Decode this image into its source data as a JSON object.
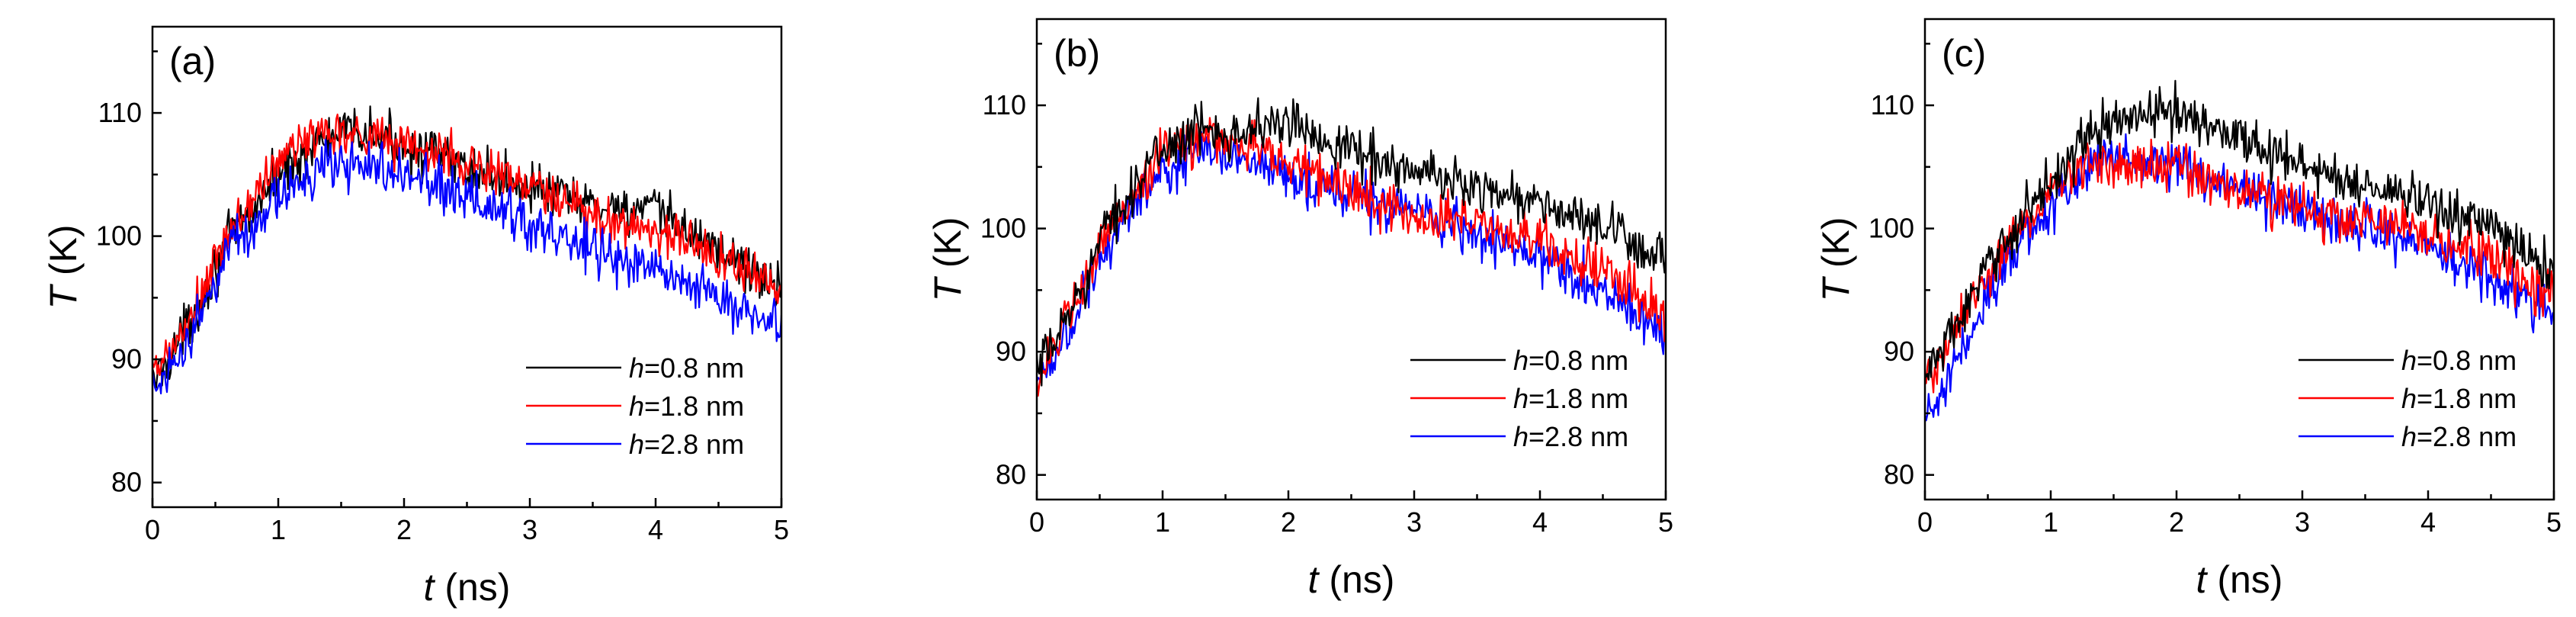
{
  "figure": {
    "panels": [
      {
        "label": "(a)",
        "series_order": [
          0,
          1,
          2
        ]
      },
      {
        "label": "(b)",
        "series_order": [
          2,
          1,
          0
        ]
      },
      {
        "label": "(c)",
        "series_order": [
          2,
          1,
          0
        ]
      }
    ]
  },
  "chart_data": [
    {
      "type": "line",
      "panel": "(a)",
      "xlabel_var": "t",
      "xlabel_unit": " (ns)",
      "ylabel_var": "T",
      "ylabel_unit": " (K)",
      "xlim": [
        0,
        5
      ],
      "ylim": [
        78,
        117
      ],
      "xticks": [
        0,
        1,
        2,
        3,
        4,
        5
      ],
      "yticks": [
        80,
        90,
        100,
        110
      ],
      "legend_position": "bottom-right",
      "series": [
        {
          "name_var": "h",
          "name_rest": "=0.8 nm",
          "color": "#000000",
          "noise": 1.0,
          "keypoints": [
            [
              0,
              88
            ],
            [
              0.3,
              93
            ],
            [
              0.6,
              99.5
            ],
            [
              1.0,
              105
            ],
            [
              1.3,
              107.5
            ],
            [
              1.6,
              108.5
            ],
            [
              2.0,
              107.5
            ],
            [
              2.5,
              105.5
            ],
            [
              3.0,
              104
            ],
            [
              3.5,
              102.5
            ],
            [
              4.0,
              102
            ],
            [
              4.5,
              99
            ],
            [
              5.0,
              95.5
            ]
          ]
        },
        {
          "name_var": "h",
          "name_rest": "=1.8 nm",
          "color": "#ff0000",
          "noise": 1.0,
          "keypoints": [
            [
              0,
              88.5
            ],
            [
              0.3,
              93
            ],
            [
              0.6,
              100
            ],
            [
              1.0,
              106
            ],
            [
              1.3,
              108.5
            ],
            [
              1.6,
              108.5
            ],
            [
              2.0,
              107.5
            ],
            [
              2.5,
              106
            ],
            [
              3.0,
              104
            ],
            [
              3.5,
              101.5
            ],
            [
              4.0,
              100.5
            ],
            [
              4.5,
              98.5
            ],
            [
              5.0,
              95.5
            ]
          ]
        },
        {
          "name_var": "h",
          "name_rest": "=2.8 nm",
          "color": "#0000ff",
          "noise": 1.0,
          "keypoints": [
            [
              0,
              87.5
            ],
            [
              0.3,
              92
            ],
            [
              0.6,
              98.5
            ],
            [
              1.0,
              103
            ],
            [
              1.3,
              105.5
            ],
            [
              1.6,
              106
            ],
            [
              2.0,
              105
            ],
            [
              2.5,
              103
            ],
            [
              3.0,
              101
            ],
            [
              3.5,
              99
            ],
            [
              4.0,
              97
            ],
            [
              4.5,
              95
            ],
            [
              5.0,
              92.5
            ]
          ]
        }
      ]
    },
    {
      "type": "line",
      "panel": "(b)",
      "xlabel_var": "t",
      "xlabel_unit": " (ns)",
      "ylabel_var": "T",
      "ylabel_unit": " (K)",
      "xlim": [
        0,
        5
      ],
      "ylim": [
        78,
        117
      ],
      "xticks": [
        0,
        1,
        2,
        3,
        4,
        5
      ],
      "yticks": [
        80,
        90,
        100,
        110
      ],
      "legend_position": "bottom-right",
      "series": [
        {
          "name_var": "h",
          "name_rest": "=0.8 nm",
          "color": "#000000",
          "noise": 1.0,
          "keypoints": [
            [
              0,
              88
            ],
            [
              0.3,
              94
            ],
            [
              0.6,
              101
            ],
            [
              1.0,
              106.5
            ],
            [
              1.3,
              108
            ],
            [
              1.6,
              108
            ],
            [
              2.0,
              108.5
            ],
            [
              2.5,
              106.5
            ],
            [
              3.0,
              104.5
            ],
            [
              3.5,
              103.5
            ],
            [
              4.0,
              102
            ],
            [
              4.5,
              100
            ],
            [
              5.0,
              97.5
            ]
          ]
        },
        {
          "name_var": "h",
          "name_rest": "=1.8 nm",
          "color": "#ff0000",
          "noise": 1.0,
          "keypoints": [
            [
              0,
              88
            ],
            [
              0.3,
              93.5
            ],
            [
              0.6,
              100.5
            ],
            [
              1.0,
              106
            ],
            [
              1.3,
              107.5
            ],
            [
              1.6,
              107
            ],
            [
              2.0,
              105.5
            ],
            [
              2.5,
              103
            ],
            [
              3.0,
              101
            ],
            [
              3.5,
              100.5
            ],
            [
              4.0,
              99
            ],
            [
              4.5,
              96.5
            ],
            [
              5.0,
              93
            ]
          ]
        },
        {
          "name_var": "h",
          "name_rest": "=2.8 nm",
          "color": "#0000ff",
          "noise": 1.0,
          "keypoints": [
            [
              0,
              87.5
            ],
            [
              0.3,
              93
            ],
            [
              0.6,
              99.5
            ],
            [
              1.0,
              104.5
            ],
            [
              1.3,
              106
            ],
            [
              1.6,
              106
            ],
            [
              2.0,
              104.5
            ],
            [
              2.5,
              102.5
            ],
            [
              3.0,
              101
            ],
            [
              3.5,
              99.5
            ],
            [
              4.0,
              97.5
            ],
            [
              4.5,
              95
            ],
            [
              5.0,
              91.5
            ]
          ]
        }
      ]
    },
    {
      "type": "line",
      "panel": "(c)",
      "xlabel_var": "t",
      "xlabel_unit": " (ns)",
      "ylabel_var": "T",
      "ylabel_unit": " (K)",
      "xlim": [
        0,
        5
      ],
      "ylim": [
        78,
        117
      ],
      "xticks": [
        0,
        1,
        2,
        3,
        4,
        5
      ],
      "yticks": [
        80,
        90,
        100,
        110
      ],
      "legend_position": "bottom-right",
      "series": [
        {
          "name_var": "h",
          "name_rest": "=0.8 nm",
          "color": "#000000",
          "noise": 1.0,
          "keypoints": [
            [
              0,
              88
            ],
            [
              0.3,
              93
            ],
            [
              0.6,
              98.5
            ],
            [
              1.0,
              104
            ],
            [
              1.3,
              107.5
            ],
            [
              1.6,
              109
            ],
            [
              2.0,
              109.5
            ],
            [
              2.5,
              107.5
            ],
            [
              3.0,
              105
            ],
            [
              3.5,
              103.5
            ],
            [
              4.0,
              102
            ],
            [
              4.5,
              100
            ],
            [
              5.0,
              96.5
            ]
          ]
        },
        {
          "name_var": "h",
          "name_rest": "=1.8 nm",
          "color": "#ff0000",
          "noise": 1.0,
          "keypoints": [
            [
              0,
              87.5
            ],
            [
              0.3,
              92.5
            ],
            [
              0.6,
              98
            ],
            [
              1.0,
              103
            ],
            [
              1.3,
              105.5
            ],
            [
              1.6,
              105.5
            ],
            [
              2.0,
              105
            ],
            [
              2.5,
              103
            ],
            [
              3.0,
              101.5
            ],
            [
              3.5,
              100.5
            ],
            [
              4.0,
              99.5
            ],
            [
              4.5,
              97.5
            ],
            [
              5.0,
              94.5
            ]
          ]
        },
        {
          "name_var": "h",
          "name_rest": "=2.8 nm",
          "color": "#0000ff",
          "noise": 1.0,
          "keypoints": [
            [
              0,
              84.5
            ],
            [
              0.3,
              90
            ],
            [
              0.6,
              96.5
            ],
            [
              1.0,
              102
            ],
            [
              1.3,
              105
            ],
            [
              1.6,
              106
            ],
            [
              2.0,
              105
            ],
            [
              2.5,
              103
            ],
            [
              3.0,
              101.5
            ],
            [
              3.5,
              100
            ],
            [
              4.0,
              98.5
            ],
            [
              4.5,
              96
            ],
            [
              5.0,
              93
            ]
          ]
        }
      ]
    }
  ]
}
